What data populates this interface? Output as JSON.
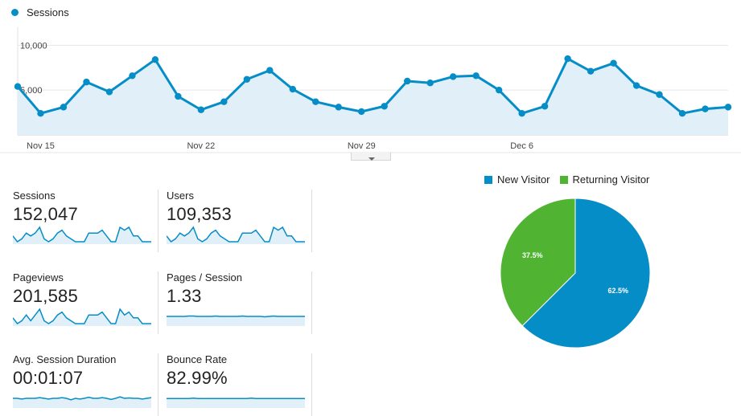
{
  "colors": {
    "primary": "#058dc7",
    "fill": "#e1eff8",
    "green": "#50b432",
    "grid": "#e6e6e6"
  },
  "chart_data": [
    {
      "type": "line",
      "series": [
        {
          "name": "Sessions",
          "values": [
            5400,
            2400,
            3100,
            5900,
            4800,
            6600,
            8400,
            4300,
            2800,
            3700,
            6200,
            7200,
            5100,
            3700,
            3100,
            2600,
            3200,
            6000,
            5800,
            6500,
            6600,
            5000,
            2400,
            3200,
            8500,
            7100,
            8000,
            5500,
            4500,
            2400,
            2900,
            3100
          ]
        }
      ],
      "yticks": [
        "10,000",
        "5,000"
      ],
      "xticks": [
        {
          "label": "Nov 15",
          "index": 1
        },
        {
          "label": "Nov 22",
          "index": 8
        },
        {
          "label": "Nov 29",
          "index": 15
        },
        {
          "label": "Dec 6",
          "index": 22
        }
      ],
      "ylim": [
        0,
        12000
      ]
    },
    {
      "type": "pie",
      "series": [
        {
          "name": "New Visitor",
          "value": 62.5,
          "label": "62.5%",
          "color": "#058dc7"
        },
        {
          "name": "Returning Visitor",
          "value": 37.5,
          "label": "37.5%",
          "color": "#50b432"
        }
      ]
    }
  ],
  "metrics": [
    {
      "label": "Sessions",
      "value": "152,047",
      "spark": [
        5,
        3,
        4,
        6,
        5,
        6,
        8,
        4,
        3,
        4,
        6,
        7,
        5,
        4,
        3,
        3,
        3,
        6,
        6,
        6,
        7,
        5,
        3,
        3,
        8,
        7,
        8,
        5,
        5,
        3,
        3,
        3
      ]
    },
    {
      "label": "Users",
      "value": "109,353",
      "spark": [
        5,
        3,
        4,
        6,
        5,
        6,
        8,
        4,
        3,
        4,
        6,
        7,
        5,
        4,
        3,
        3,
        3,
        6,
        6,
        6,
        7,
        5,
        3,
        3,
        8,
        7,
        8,
        5,
        5,
        3,
        3,
        3
      ]
    },
    {
      "label": "Pageviews",
      "value": "201,585",
      "spark": [
        5,
        3,
        4,
        6,
        4,
        6,
        8,
        4,
        3,
        4,
        6,
        7,
        5,
        4,
        3,
        3,
        3,
        6,
        6,
        6,
        7,
        5,
        3,
        3,
        8,
        6,
        7,
        5,
        5,
        3,
        3,
        3
      ]
    },
    {
      "label": "Pages / Session",
      "value": "1.33",
      "spark": [
        5,
        5,
        5,
        5,
        5,
        5.1,
        5.1,
        5,
        5,
        5,
        5,
        5.1,
        5,
        5,
        5,
        5,
        5,
        5.1,
        5,
        5,
        5,
        5,
        4.9,
        5,
        5.1,
        5,
        5,
        5,
        5,
        5,
        5,
        5
      ]
    },
    {
      "label": "Avg. Session Duration",
      "value": "00:01:07",
      "spark": [
        5,
        5,
        4.8,
        5,
        5,
        5,
        5.2,
        5,
        4.8,
        5,
        5,
        5.2,
        5,
        4.6,
        5,
        4.8,
        5,
        5.3,
        5,
        5,
        5.2,
        5,
        4.7,
        5,
        5.4,
        5,
        5.1,
        5,
        5,
        4.8,
        5,
        5.2
      ]
    },
    {
      "label": "Bounce Rate",
      "value": "82.99%",
      "spark": [
        5,
        5,
        5,
        5,
        5,
        5,
        5.1,
        5,
        5,
        5,
        5,
        5,
        5,
        5,
        5,
        5,
        5,
        5,
        5,
        5.1,
        5,
        5,
        5,
        5,
        5,
        5,
        5,
        5,
        5,
        5,
        5,
        5
      ]
    }
  ]
}
